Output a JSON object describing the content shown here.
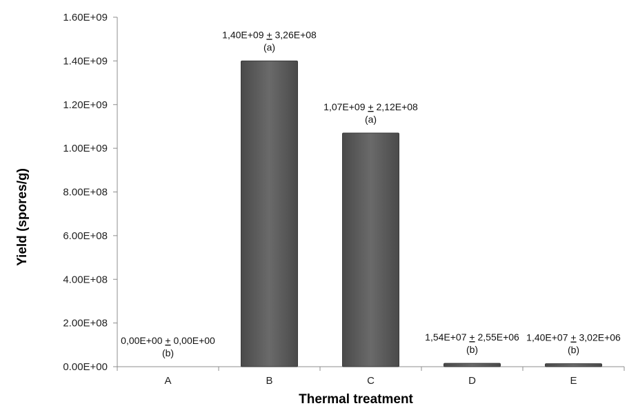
{
  "chart_data": {
    "type": "bar",
    "title": "",
    "xlabel": "Thermal treatment",
    "ylabel": "Yield (spores/g)",
    "categories": [
      "A",
      "B",
      "C",
      "D",
      "E"
    ],
    "values": [
      0,
      1400000000,
      1070000000,
      15400000,
      14000000
    ],
    "ylim": [
      0,
      1600000000
    ],
    "yticks": [
      0,
      200000000,
      400000000,
      600000000,
      800000000,
      1000000000,
      1200000000,
      1400000000,
      1600000000
    ],
    "ytick_labels": [
      "0.00E+00",
      "2.00E+08",
      "4.00E+08",
      "6.00E+08",
      "8.00E+08",
      "1.00E+09",
      "1.20E+09",
      "1.40E+09",
      "1.60E+09"
    ],
    "data_labels": [
      {
        "value_text": "0,00E+00",
        "error_text": "0,00E+00",
        "group": "(b)"
      },
      {
        "value_text": "1,40E+09",
        "error_text": "3,26E+08",
        "group": "(a)"
      },
      {
        "value_text": "1,07E+09",
        "error_text": "2,12E+08",
        "group": "(a)"
      },
      {
        "value_text": "1,54E+07",
        "error_text": "2,55E+06",
        "group": "(b)"
      },
      {
        "value_text": "1,40E+07",
        "error_text": "3,02E+06",
        "group": "(b)"
      }
    ],
    "pm_symbol": "+",
    "bar_color": "#5f5f5f",
    "grid": false,
    "legend": "none"
  }
}
